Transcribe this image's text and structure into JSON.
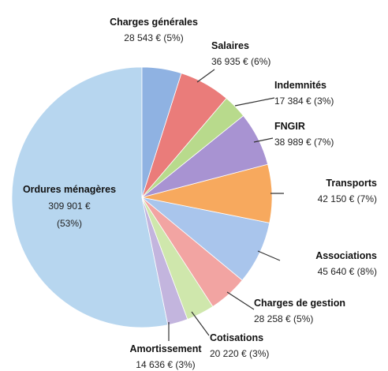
{
  "chart_data": {
    "type": "pie",
    "categories": [
      "Charges générales",
      "Salaires",
      "Indemnités",
      "FNGIR",
      "Transports",
      "Associations",
      "Charges de gestion",
      "Cotisations",
      "Amortissement",
      "Ordures ménagères"
    ],
    "values": [
      28543,
      36935,
      17384,
      38989,
      42150,
      45640,
      28258,
      20220,
      14636,
      309901
    ],
    "value_labels": [
      "28 543 € (5%)",
      "36 935 € (6%)",
      "17 384 € (3%)",
      "38 989 € (7%)",
      "42 150 € (7%)",
      "45 640 € (8%)",
      "28 258 € (5%)",
      "20 220 € (3%)",
      "14 636 € (3%)",
      "309 901 € (53%)"
    ],
    "colors": [
      "#8fb2e2",
      "#ea7c7a",
      "#b8da8c",
      "#a893d2",
      "#f7a95e",
      "#a9c5ec",
      "#f2a4a2",
      "#cfe7ac",
      "#c3b5de",
      "#b7d6ef"
    ]
  }
}
